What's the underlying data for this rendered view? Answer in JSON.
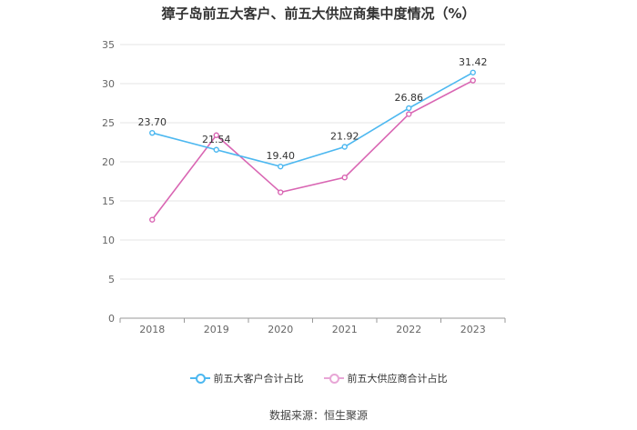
{
  "title": "獐子岛前五大客户、前五大供应商集中度情况（%）",
  "source_text": "数据来源：恒生聚源",
  "chart_data": {
    "type": "line",
    "title": "獐子岛前五大客户、前五大供应商集中度情况（%）",
    "categories": [
      "2018",
      "2019",
      "2020",
      "2021",
      "2022",
      "2023"
    ],
    "y_ticks": [
      "0",
      "5",
      "10",
      "15",
      "20",
      "25",
      "30",
      "35"
    ],
    "ylim": [
      0,
      35
    ],
    "grid": true,
    "legend_position": "bottom",
    "series": [
      {
        "name": "前五大客户合计占比",
        "color": "#4db8f0",
        "values": [
          23.7,
          21.54,
          19.4,
          21.92,
          26.86,
          31.42
        ],
        "labels": [
          "23.70",
          "21.54",
          "19.40",
          "21.92",
          "26.86",
          "31.42"
        ]
      },
      {
        "name": "前五大供应商合计占比",
        "color": "#d966b3",
        "values": [
          12.6,
          23.4,
          16.1,
          18.0,
          26.1,
          30.4
        ]
      }
    ]
  }
}
